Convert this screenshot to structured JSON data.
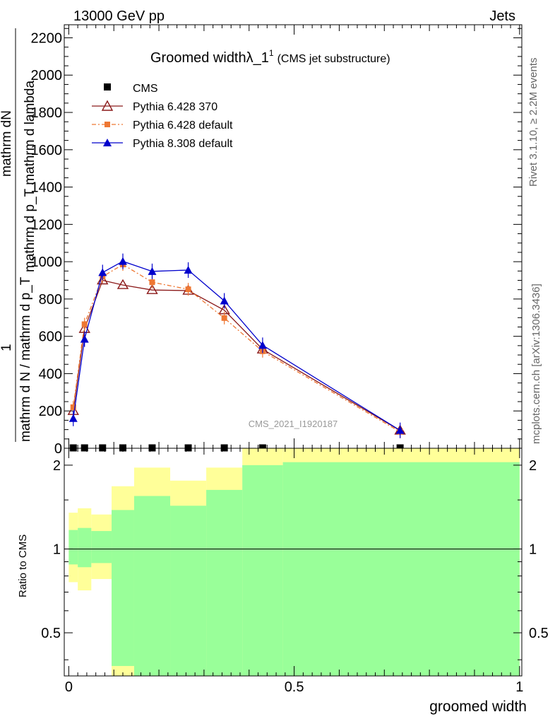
{
  "header": {
    "left": "13000 GeV pp",
    "right": "Jets"
  },
  "side_labels": {
    "rivet": "Rivet 3.1.10, ≥ 2.2M events",
    "mcplots": "mcplots.cern.ch [arXiv:1306.3436]"
  },
  "chart_data": [
    {
      "type": "line",
      "title_main": "Groomed widthλ_1",
      "title_sup": "1",
      "title_suffix": "(CMS jet substructure)",
      "watermark": "CMS_2021_I1920187",
      "ylabel_numerator_one": "1",
      "ylabel_numerator_frac": "mathrm d^{2}N",
      "ylabel_line1": "mathrm dN",
      "ylabel_line2": "mathrm d p_T mathrm d lambda",
      "ylabel_denominator": "mathrm d N / mathrm d p_T",
      "ylabel_full_top": "mathrm d^{2}N",
      "ylabel_full_mid": "mathrm d p_T mathrm d lambda",
      "ylabel_full_bottom": "mathrm d N / mathrm d p_T",
      "y_label_lines": [
        "mathrm dN",
        "mathrm d p_T mathrm d lambda",
        "1",
        "mathrm d N / mathrm d p_T mathrm d p_T"
      ],
      "xlim": [
        -0.01,
        1.005
      ],
      "ylim": [
        0,
        2270
      ],
      "yticks": [
        0,
        200,
        400,
        600,
        800,
        1000,
        1200,
        1400,
        1600,
        1800,
        2000,
        2200
      ],
      "ytick_labels": [
        "0",
        "200",
        "400",
        "600",
        "800",
        "1000",
        "1200",
        "1400",
        "1600",
        "1800",
        "2000",
        "2200"
      ],
      "legend": [
        "CMS",
        "Pythia 6.428 370",
        "Pythia 6.428 default",
        "Pythia 8.308 default"
      ],
      "x": [
        0.01,
        0.035,
        0.075,
        0.12,
        0.185,
        0.265,
        0.345,
        0.43,
        0.735
      ],
      "series": [
        {
          "name": "CMS",
          "color": "#000000",
          "values": [
            2,
            2,
            2,
            2,
            2,
            2,
            2,
            2,
            2
          ]
        },
        {
          "name": "Pythia 6.428 370",
          "color": "#8b1a1a",
          "values": [
            200,
            640,
            900,
            875,
            848,
            845,
            740,
            530,
            95
          ]
        },
        {
          "name": "Pythia 6.428 default",
          "color": "#ee7733",
          "values": [
            220,
            665,
            920,
            985,
            890,
            852,
            698,
            520,
            88
          ]
        },
        {
          "name": "Pythia 8.308 default",
          "color": "#0000cc",
          "values": [
            160,
            585,
            942,
            1002,
            948,
            955,
            790,
            552,
            96
          ]
        }
      ]
    },
    {
      "type": "area",
      "ylabel": "Ratio to CMS",
      "xlabel": "groomed width",
      "xlim": [
        -0.01,
        1.005
      ],
      "ylim": [
        0.35,
        2.3
      ],
      "xticks": [
        0,
        0.5,
        1
      ],
      "xtick_labels": [
        "0",
        "0.5",
        "1"
      ],
      "yticks": [
        0.5,
        1,
        2
      ],
      "ytick_labels": [
        "0.5",
        "1",
        "2"
      ],
      "reference_line": 1,
      "bin_edges": [
        0,
        0.02,
        0.05,
        0.095,
        0.145,
        0.225,
        0.305,
        0.385,
        0.475,
        1.0
      ],
      "band_inner": {
        "name": "stat",
        "color": "#99ff99",
        "lower": [
          0.88,
          0.86,
          0.89,
          0.38,
          0.35,
          0.35,
          0.35,
          0.35,
          0.35
        ],
        "upper": [
          1.17,
          1.19,
          1.16,
          1.38,
          1.55,
          1.43,
          1.63,
          2.0,
          2.05
        ]
      },
      "band_outer": {
        "name": "total",
        "color": "#ffff99",
        "lower": [
          0.76,
          0.71,
          0.78,
          0.35,
          0.35,
          0.35,
          0.35,
          0.35,
          0.35
        ],
        "upper": [
          1.35,
          1.4,
          1.33,
          1.68,
          1.96,
          1.76,
          1.96,
          2.3,
          2.3
        ]
      }
    }
  ]
}
